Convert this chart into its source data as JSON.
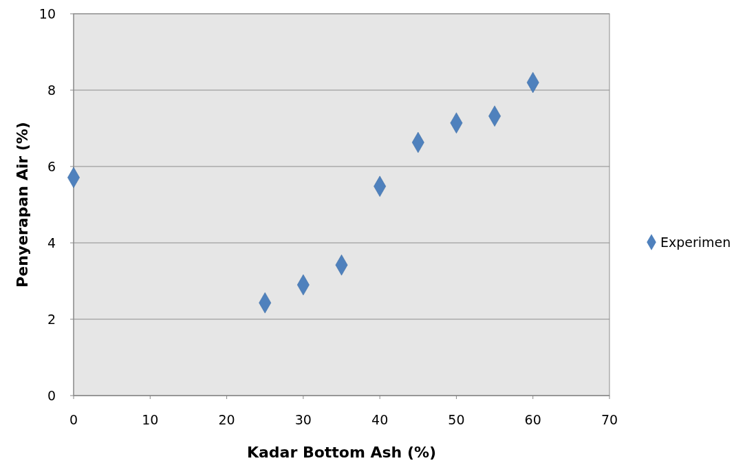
{
  "chart_data": {
    "type": "scatter",
    "xlabel": "Kadar Bottom Ash (%)",
    "ylabel": "Penyerapan Air (%)",
    "x": [
      0,
      25,
      30,
      35,
      40,
      45,
      50,
      55,
      60
    ],
    "series": [
      {
        "name": "Experimen",
        "color": "#4f81bd",
        "values": [
          5.71,
          2.43,
          2.9,
          3.42,
          5.48,
          6.63,
          7.14,
          7.32,
          8.2
        ]
      }
    ],
    "xlim": [
      0,
      70
    ],
    "xticks": [
      0,
      10,
      20,
      30,
      40,
      50,
      60,
      70
    ],
    "ylim": [
      0,
      10
    ],
    "yticks": [
      0,
      2,
      4,
      6,
      8,
      10
    ],
    "grid": "y",
    "legend": "right",
    "marker": "diamond"
  }
}
